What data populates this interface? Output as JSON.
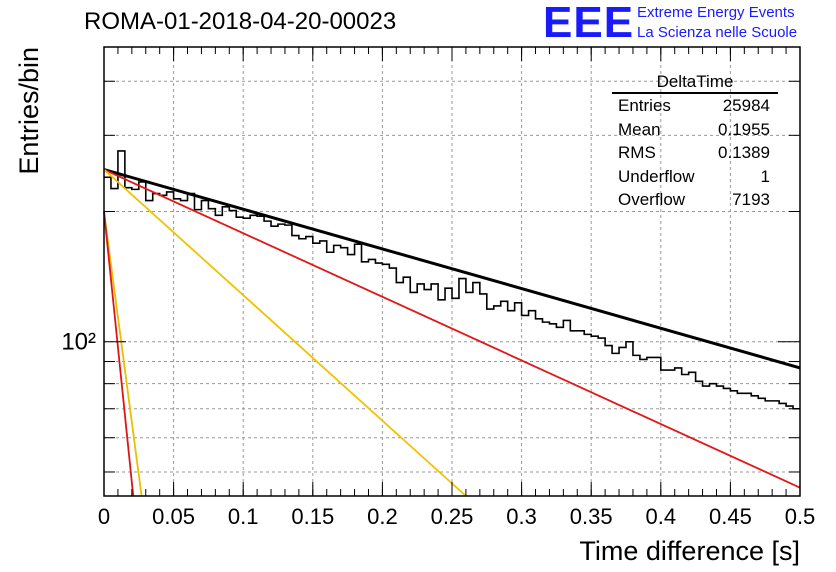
{
  "header": {
    "title": "ROMA-01-2018-04-20-00023",
    "logo_text": "EEE",
    "logo_line1": "Extreme Energy Events",
    "logo_line2": "La Scienza nelle Scuole",
    "logo_color": "#1a1aff"
  },
  "stats_box": {
    "name": "DeltaTime",
    "rows": [
      {
        "label": "Entries",
        "value": "25984"
      },
      {
        "label": "Mean",
        "value": "0.1955"
      },
      {
        "label": "RMS",
        "value": "0.1389"
      },
      {
        "label": "Underflow",
        "value": "1"
      },
      {
        "label": "Overflow",
        "value": "7193"
      }
    ]
  },
  "chart_data": {
    "type": "line",
    "xlabel": "Time difference [s]",
    "ylabel": "Entries/bin",
    "xlim": [
      0,
      0.5
    ],
    "ylim": [
      44,
      480
    ],
    "yscale": "log",
    "grid": true,
    "x_ticks": [
      "0",
      "0.05",
      "0.1",
      "0.15",
      "0.2",
      "0.25",
      "0.3",
      "0.35",
      "0.4",
      "0.45",
      "0.5"
    ],
    "y_tick_label": "10²",
    "histogram": {
      "bin_width": 0.005,
      "values": [
        240,
        226,
        276,
        227,
        225,
        234,
        212,
        220,
        218,
        222,
        214,
        212,
        220,
        202,
        212,
        203,
        196,
        205,
        201,
        194,
        193,
        196,
        195,
        190,
        185,
        187,
        186,
        176,
        173,
        175,
        169,
        171,
        161,
        167,
        165,
        159,
        168,
        153,
        155,
        152,
        151,
        148,
        137,
        141,
        130,
        136,
        132,
        136,
        125,
        133,
        126,
        140,
        130,
        137,
        129,
        119,
        121,
        124,
        118,
        123,
        115,
        118,
        113,
        111,
        110,
        108,
        112,
        106,
        106,
        104,
        103,
        102,
        98,
        94,
        97,
        100,
        93,
        91,
        92,
        92,
        86,
        86,
        87,
        84,
        85,
        81,
        79,
        80,
        79,
        78,
        77,
        76,
        76,
        75,
        74,
        73,
        73,
        72,
        71,
        70
      ]
    },
    "series": [
      {
        "name": "",
        "color": "#000000",
        "points": [
          [
            0,
            250
          ],
          [
            0.5,
            87
          ]
        ]
      },
      {
        "name": "",
        "color": "#e01818",
        "points": [
          [
            0,
            250
          ],
          [
            0.5,
            46
          ]
        ]
      },
      {
        "name": "",
        "color": "#f2c200",
        "points": [
          [
            0,
            250
          ],
          [
            0.26,
            44
          ]
        ]
      },
      {
        "name": "",
        "color": "#e8c000",
        "points": [
          [
            0,
            200
          ],
          [
            0.027,
            44
          ]
        ]
      },
      {
        "name": "",
        "color": "#d81818",
        "points": [
          [
            0,
            200
          ],
          [
            0.021,
            44
          ]
        ]
      }
    ]
  }
}
